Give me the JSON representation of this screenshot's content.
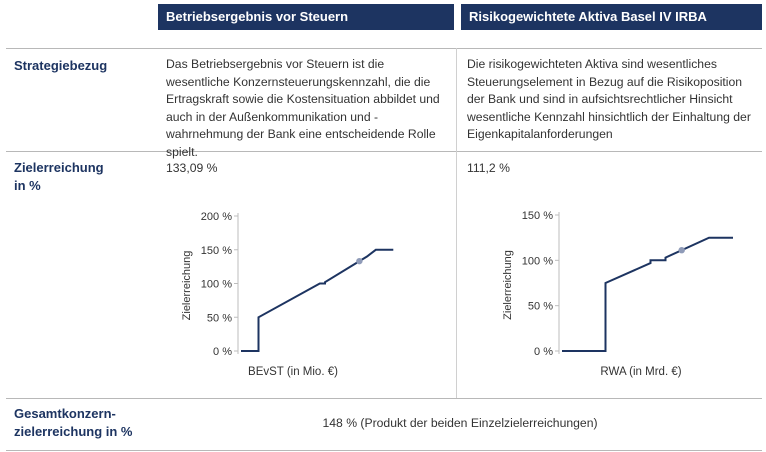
{
  "header": {
    "col1": "Betriebsergebnis vor Steuern",
    "col2": "Risikogewichtete Aktiva Basel IV IRBA"
  },
  "rows": {
    "strategy": {
      "label": "Strategiebezug",
      "col1": "Das Betriebsergebnis vor Steuern ist die wesentliche Konzernsteuerungskennzahl, die die Ertragskraft sowie die Kostensituation abbildet und auch in der Außenkommunikation und -wahrnehmung der Bank eine entscheidende Rolle spielt.",
      "col2": "Die risikogewichteten Aktiva sind wesentliches Steuerungselement in Bezug auf die Risikoposition der Bank und sind in aufsichtsrechtlicher Hinsicht wesentliche Kennzahl hinsichtlich der Einhaltung der Eigenkapitalanforderungen"
    },
    "target": {
      "label_line1": "Zielerreichung",
      "label_line2": "in %",
      "col1": "133,09 %",
      "col2": "111,2 %"
    },
    "total": {
      "label_line1": "Gesamtkonzern-",
      "label_line2": "zielerreichung in %",
      "value": "148 % (Produkt der beiden Einzelzielerreichungen)"
    }
  },
  "colors": {
    "navy": "#1d3461",
    "marker": "#8f9bb8",
    "rule": "#b8b8b8"
  },
  "chart_data": [
    {
      "type": "line",
      "xlabel": "BEvST (in Mio. €)",
      "ylabel": "Zielerreichung",
      "ylim": [
        0,
        200
      ],
      "yticks": [
        "0 %",
        "50 %",
        "100 %",
        "150 %",
        "200 %"
      ],
      "series": [
        {
          "values": [
            [
              0,
              0
            ],
            [
              1,
              0
            ],
            [
              1,
              50
            ],
            [
              4.5,
              100
            ],
            [
              4.8,
              100
            ],
            [
              4.8,
              102
            ],
            [
              7.2,
              140
            ],
            [
              7.7,
              150
            ],
            [
              8.7,
              150
            ]
          ]
        }
      ],
      "marker": {
        "y": 133.09
      }
    },
    {
      "type": "line",
      "xlabel": "RWA (in Mrd. €)",
      "ylabel": "Zielerreichung",
      "ylim": [
        0,
        150
      ],
      "yticks": [
        "0 %",
        "50 %",
        "100 %",
        "150 %"
      ],
      "series": [
        {
          "values": [
            [
              0,
              0
            ],
            [
              2.9,
              0
            ],
            [
              2.9,
              75
            ],
            [
              5.9,
              97
            ],
            [
              5.9,
              100
            ],
            [
              6.9,
              100
            ],
            [
              6.9,
              103
            ],
            [
              9.8,
              125
            ],
            [
              11.4,
              125
            ]
          ]
        }
      ],
      "marker": {
        "y": 111.2
      }
    }
  ]
}
